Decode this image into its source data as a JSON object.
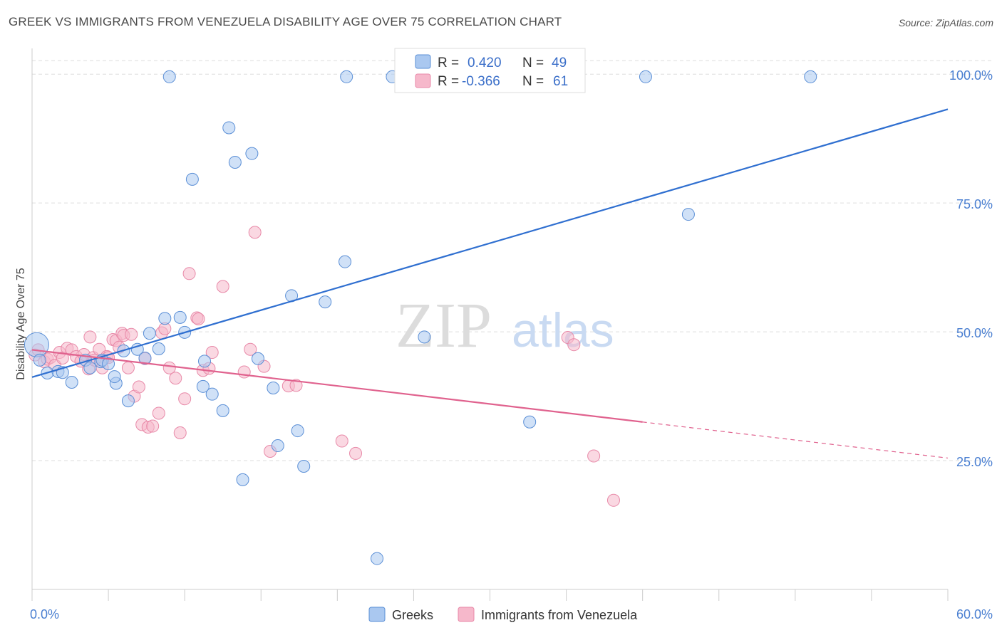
{
  "title": "GREEK VS IMMIGRANTS FROM VENEZUELA DISABILITY AGE OVER 75 CORRELATION CHART",
  "source": "Source: ZipAtlas.com",
  "watermark": {
    "zip": "ZIP",
    "atlas": "atlas"
  },
  "colors": {
    "blue_fill": "#aac8f0",
    "blue_stroke": "#5b8fd6",
    "blue_line": "#2f6fd0",
    "pink_fill": "#f6b8cb",
    "pink_stroke": "#e889a8",
    "pink_line": "#e0628e",
    "grid": "#dddddd",
    "tick_text": "#4a7fd1"
  },
  "legend": {
    "rows": [
      {
        "r_label": "R =",
        "r_value": "0.420",
        "n_label": "N =",
        "n_value": "49"
      },
      {
        "r_label": "R =",
        "r_value": "-0.366",
        "n_label": "N =",
        "n_value": "61"
      }
    ]
  },
  "chart_data": {
    "type": "scatter",
    "title": "GREEK VS IMMIGRANTS FROM VENEZUELA DISABILITY AGE OVER 75 CORRELATION CHART",
    "xlabel": "",
    "ylabel": "Disability Age Over 75",
    "xlim": [
      0,
      60
    ],
    "ylim": [
      0,
      105
    ],
    "x_tick_labels": [
      "0.0%",
      "60.0%"
    ],
    "y_ticks": [
      25,
      50,
      75,
      100
    ],
    "y_tick_labels": [
      "25.0%",
      "50.0%",
      "75.0%",
      "100.0%"
    ],
    "grid": true,
    "series": [
      {
        "name": "Greeks",
        "color": "#5b8fd6",
        "trend": {
          "x": [
            0,
            60
          ],
          "y": [
            41.2,
            93.2
          ]
        },
        "points": [
          {
            "x": 0.3,
            "y": 47.5,
            "big": true
          },
          {
            "x": 0.5,
            "y": 44.5
          },
          {
            "x": 1.0,
            "y": 42.0
          },
          {
            "x": 1.7,
            "y": 42.3
          },
          {
            "x": 2.0,
            "y": 42.1
          },
          {
            "x": 2.6,
            "y": 40.2
          },
          {
            "x": 3.5,
            "y": 44.5
          },
          {
            "x": 3.8,
            "y": 43.0
          },
          {
            "x": 4.5,
            "y": 44.2
          },
          {
            "x": 4.6,
            "y": 44.5
          },
          {
            "x": 5.0,
            "y": 43.8
          },
          {
            "x": 5.5,
            "y": 40.0
          },
          {
            "x": 5.4,
            "y": 41.3
          },
          {
            "x": 6.0,
            "y": 46.3
          },
          {
            "x": 6.3,
            "y": 36.6
          },
          {
            "x": 6.9,
            "y": 46.6
          },
          {
            "x": 7.4,
            "y": 44.9
          },
          {
            "x": 7.7,
            "y": 49.7
          },
          {
            "x": 8.3,
            "y": 46.7
          },
          {
            "x": 8.7,
            "y": 52.6
          },
          {
            "x": 9.0,
            "y": 99.5
          },
          {
            "x": 9.7,
            "y": 52.8
          },
          {
            "x": 10.0,
            "y": 49.9
          },
          {
            "x": 10.5,
            "y": 79.6
          },
          {
            "x": 11.3,
            "y": 44.3
          },
          {
            "x": 11.2,
            "y": 39.4
          },
          {
            "x": 11.8,
            "y": 37.9
          },
          {
            "x": 12.5,
            "y": 34.7
          },
          {
            "x": 12.9,
            "y": 89.6
          },
          {
            "x": 13.3,
            "y": 82.9
          },
          {
            "x": 13.8,
            "y": 21.3
          },
          {
            "x": 14.4,
            "y": 84.6
          },
          {
            "x": 14.8,
            "y": 44.8
          },
          {
            "x": 15.8,
            "y": 39.1
          },
          {
            "x": 16.1,
            "y": 27.9
          },
          {
            "x": 17.0,
            "y": 57.0
          },
          {
            "x": 17.4,
            "y": 30.8
          },
          {
            "x": 17.8,
            "y": 23.9
          },
          {
            "x": 19.2,
            "y": 55.8
          },
          {
            "x": 20.5,
            "y": 63.6
          },
          {
            "x": 20.6,
            "y": 99.5
          },
          {
            "x": 22.6,
            "y": 6.0
          },
          {
            "x": 23.6,
            "y": 99.5
          },
          {
            "x": 24.8,
            "y": 99.5
          },
          {
            "x": 25.7,
            "y": 49.0
          },
          {
            "x": 32.6,
            "y": 32.5
          },
          {
            "x": 40.2,
            "y": 99.5
          },
          {
            "x": 43.0,
            "y": 72.8
          },
          {
            "x": 51.0,
            "y": 99.5
          }
        ]
      },
      {
        "name": "Immigrants from Venezuela",
        "color": "#e889a8",
        "trend": {
          "x": [
            0,
            60
          ],
          "y": [
            46.5,
            25.5
          ],
          "solid_to_x": 40
        },
        "points": [
          {
            "x": 0.2,
            "y": 45.5
          },
          {
            "x": 0.4,
            "y": 46.5
          },
          {
            "x": 0.8,
            "y": 44.2
          },
          {
            "x": 1.0,
            "y": 44.7
          },
          {
            "x": 1.2,
            "y": 45.0
          },
          {
            "x": 1.5,
            "y": 43.5
          },
          {
            "x": 1.8,
            "y": 46.0
          },
          {
            "x": 2.0,
            "y": 44.9
          },
          {
            "x": 2.3,
            "y": 46.8
          },
          {
            "x": 2.6,
            "y": 46.5
          },
          {
            "x": 2.9,
            "y": 45.2
          },
          {
            "x": 3.2,
            "y": 44.3
          },
          {
            "x": 3.4,
            "y": 45.6
          },
          {
            "x": 3.7,
            "y": 42.8
          },
          {
            "x": 3.8,
            "y": 49.0
          },
          {
            "x": 4.0,
            "y": 45.0
          },
          {
            "x": 4.1,
            "y": 44.5
          },
          {
            "x": 4.4,
            "y": 46.6
          },
          {
            "x": 4.6,
            "y": 43.0
          },
          {
            "x": 4.9,
            "y": 45.2
          },
          {
            "x": 5.0,
            "y": 45.0
          },
          {
            "x": 5.3,
            "y": 48.5
          },
          {
            "x": 5.5,
            "y": 48.3
          },
          {
            "x": 5.7,
            "y": 47.0
          },
          {
            "x": 5.9,
            "y": 49.7
          },
          {
            "x": 6.0,
            "y": 49.3
          },
          {
            "x": 6.3,
            "y": 43.0
          },
          {
            "x": 6.5,
            "y": 49.5
          },
          {
            "x": 6.7,
            "y": 37.5
          },
          {
            "x": 7.0,
            "y": 39.3
          },
          {
            "x": 7.2,
            "y": 32.0
          },
          {
            "x": 7.4,
            "y": 44.8
          },
          {
            "x": 7.6,
            "y": 31.5
          },
          {
            "x": 7.9,
            "y": 31.7
          },
          {
            "x": 8.3,
            "y": 34.2
          },
          {
            "x": 8.5,
            "y": 49.8
          },
          {
            "x": 8.7,
            "y": 50.6
          },
          {
            "x": 9.0,
            "y": 43.0
          },
          {
            "x": 9.4,
            "y": 41.0
          },
          {
            "x": 9.7,
            "y": 30.4
          },
          {
            "x": 10.0,
            "y": 37.0
          },
          {
            "x": 10.3,
            "y": 61.3
          },
          {
            "x": 10.8,
            "y": 52.7
          },
          {
            "x": 11.2,
            "y": 42.5
          },
          {
            "x": 11.6,
            "y": 42.9
          },
          {
            "x": 11.8,
            "y": 46.0
          },
          {
            "x": 12.5,
            "y": 58.8
          },
          {
            "x": 13.9,
            "y": 42.2
          },
          {
            "x": 14.3,
            "y": 46.6
          },
          {
            "x": 14.6,
            "y": 69.3
          },
          {
            "x": 15.2,
            "y": 43.3
          },
          {
            "x": 15.6,
            "y": 26.8
          },
          {
            "x": 16.8,
            "y": 39.5
          },
          {
            "x": 17.3,
            "y": 39.6
          },
          {
            "x": 20.3,
            "y": 28.8
          },
          {
            "x": 21.2,
            "y": 26.4
          },
          {
            "x": 35.1,
            "y": 48.9
          },
          {
            "x": 35.5,
            "y": 47.5
          },
          {
            "x": 36.8,
            "y": 25.9
          },
          {
            "x": 38.1,
            "y": 17.3
          },
          {
            "x": 10.9,
            "y": 52.5
          }
        ]
      }
    ]
  }
}
